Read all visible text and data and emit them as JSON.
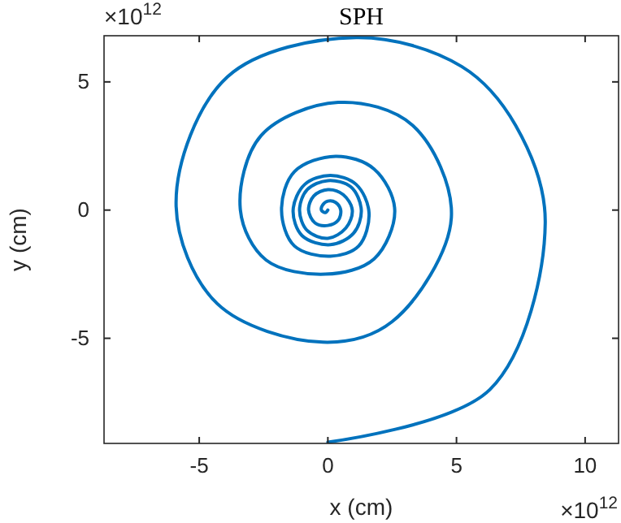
{
  "chart_data": {
    "type": "line",
    "title": "SPH",
    "xlabel": "x (cm)",
    "ylabel": "y (cm)",
    "annotations": [
      "×10$^{12}$",
      "×10$^{12}$"
    ],
    "xlim": [
      -8.7,
      11.3
    ],
    "ylim": [
      -9.1,
      6.8
    ],
    "xticks": [
      -5,
      0,
      5,
      10
    ],
    "yticks": [
      -5,
      0,
      5
    ],
    "marker": "none",
    "line_style": "solid",
    "series": [
      {
        "color": "#0072bd",
        "x": [
          0,
          6.3,
          8.45,
          7.3,
          5.2,
          1.1,
          -3.9,
          -5.9,
          -4.3,
          -0.2,
          2.5,
          4.8,
          3.3,
          0.4,
          -2.6,
          -3.4,
          -2.4,
          -0.1,
          1.8,
          2.6,
          1.8,
          0.3,
          -1.3,
          -1.8,
          -1.3,
          0.1,
          1.2,
          1.6,
          1.1,
          0.1,
          -0.9,
          -1.35,
          -1.0,
          0.1,
          1.0,
          1.3,
          0.9,
          0,
          -0.8,
          -1.1,
          -0.8,
          0,
          0.7,
          0.95,
          0.6,
          0,
          -0.55,
          -0.75,
          -0.5,
          0,
          0.4,
          0.5,
          0.3,
          0,
          -0.2,
          -0.25,
          -0.1,
          0
        ],
        "values": [
          -9.05,
          -7.0,
          -0.5,
          3.3,
          5.6,
          6.73,
          5.2,
          0.3,
          -3.65,
          -5.15,
          -4.35,
          -0.3,
          3.3,
          4.2,
          2.9,
          0,
          -1.95,
          -2.5,
          -1.9,
          0,
          1.6,
          2.1,
          1.5,
          0,
          -1.4,
          -1.8,
          -1.4,
          -0.1,
          1.0,
          1.35,
          1.0,
          0,
          -1.0,
          -1.35,
          -0.9,
          0,
          0.9,
          1.15,
          0.8,
          0,
          -0.8,
          -1.1,
          -0.7,
          0,
          0.6,
          0.8,
          0.55,
          0,
          -0.5,
          -0.6,
          -0.4,
          0,
          0.3,
          0.35,
          0.2,
          0,
          -0.1,
          0
        ]
      }
    ]
  }
}
